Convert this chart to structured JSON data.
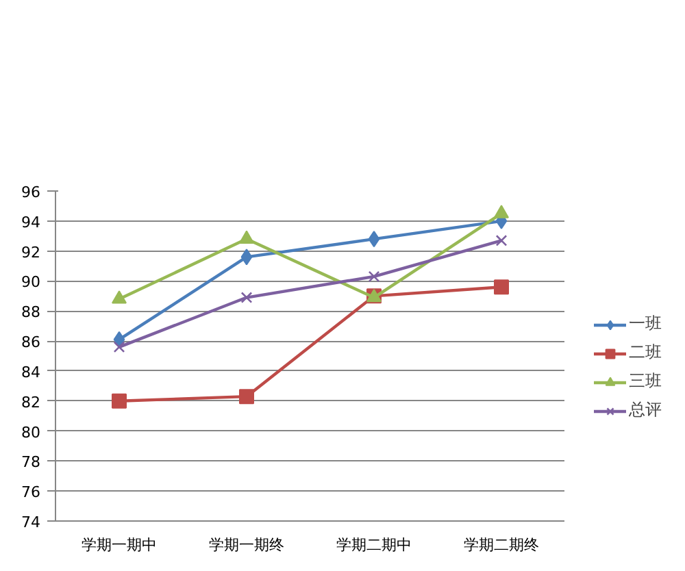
{
  "chart_data": {
    "type": "line",
    "categories": [
      "学期一期中",
      "学期一期终",
      "学期二期中",
      "学期二期终"
    ],
    "series": [
      {
        "name": "一班",
        "color": "#4a7ebb",
        "marker": "diamond",
        "values": [
          86.1,
          91.6,
          92.8,
          94.0
        ]
      },
      {
        "name": "二班",
        "color": "#be4b48",
        "marker": "square",
        "values": [
          82.0,
          82.3,
          89.0,
          89.6
        ]
      },
      {
        "name": "三班",
        "color": "#98b954",
        "marker": "triangle",
        "values": [
          88.8,
          92.8,
          88.9,
          94.5
        ]
      },
      {
        "name": "总评",
        "color": "#7d60a0",
        "marker": "cross",
        "values": [
          85.6,
          88.9,
          90.3,
          92.7
        ]
      }
    ],
    "ylim": [
      74,
      96
    ],
    "yticks": [
      74,
      76,
      78,
      80,
      82,
      84,
      86,
      88,
      90,
      92,
      94,
      96
    ],
    "grid": "y",
    "legend": "right",
    "line_style": "solid"
  }
}
